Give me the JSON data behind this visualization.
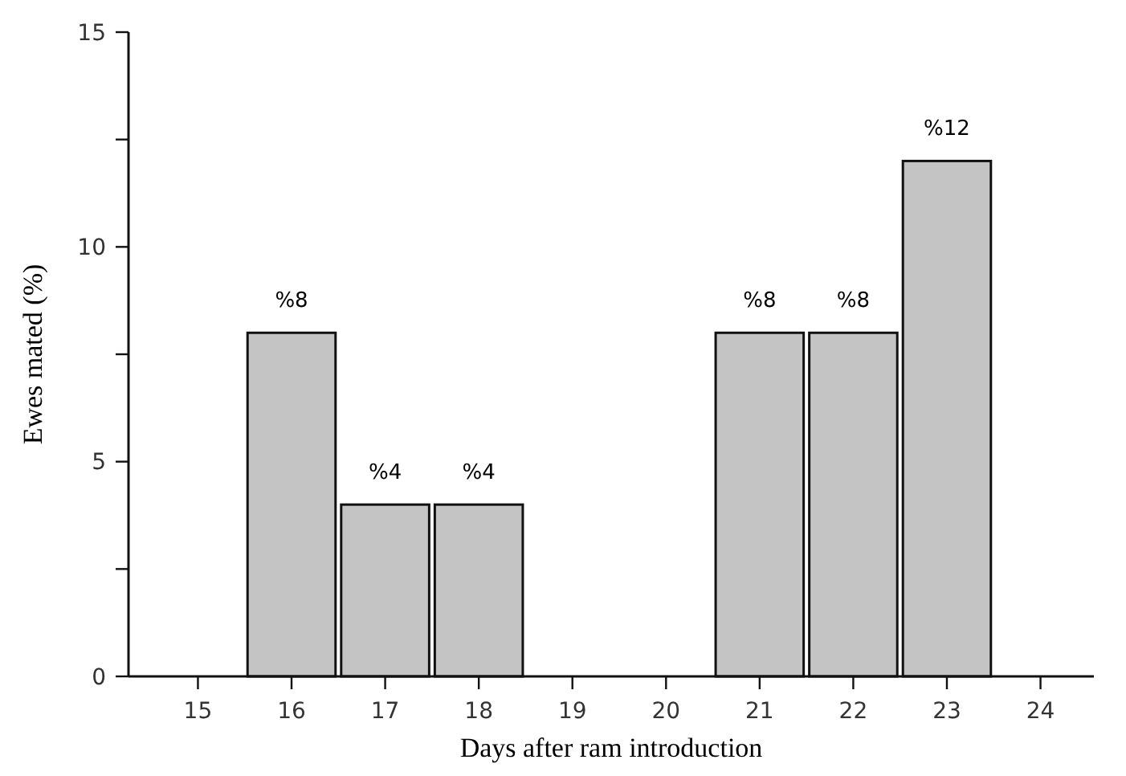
{
  "chart_data": {
    "type": "bar",
    "xlabel": "Days after ram introduction",
    "ylabel": "Ewes mated (%)",
    "categories": [
      "15",
      "16",
      "17",
      "18",
      "19",
      "20",
      "21",
      "22",
      "23",
      "24"
    ],
    "values": [
      null,
      8,
      4,
      4,
      null,
      null,
      8,
      8,
      12,
      null
    ],
    "value_labels": [
      null,
      "%8",
      "%4",
      "%4",
      null,
      null,
      "%8",
      "%8",
      "%12",
      null
    ],
    "color": "#c4c4c4",
    "ylim": [
      0,
      15
    ],
    "yticks": [
      0,
      {
        "value": 2.5,
        "label": null
      },
      5,
      {
        "value": 7.5,
        "label": null
      },
      10,
      {
        "value": 12.5,
        "label": null
      },
      15
    ]
  }
}
